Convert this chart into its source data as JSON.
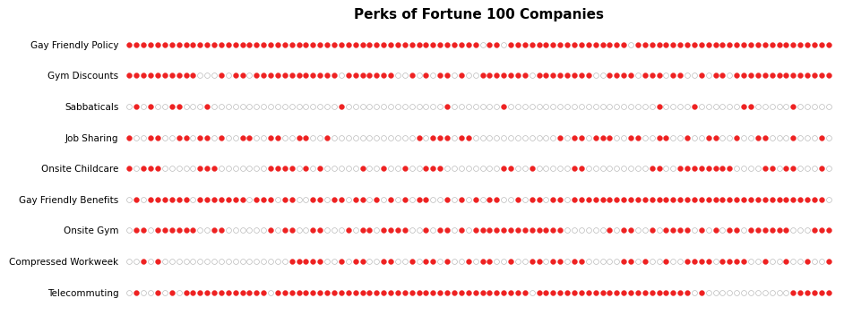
{
  "title": "Perks of Fortune 100 Companies",
  "title_fontsize": 11,
  "categories": [
    "Gay Friendly Policy",
    "Gym Discounts",
    "Sabbaticals",
    "Job Sharing",
    "Onsite Childcare",
    "Gay Friendly Benefits",
    "Onsite Gym",
    "Compressed Workweek",
    "Telecommuting"
  ],
  "n_companies": 100,
  "filled_color": "#EE2222",
  "empty_color": "#FFFFFF",
  "edge_color": "#BBBBBB",
  "background_color": "#FFFFFF",
  "binary_data": {
    "Gay Friendly Policy": [
      1,
      1,
      1,
      1,
      1,
      1,
      1,
      1,
      1,
      1,
      1,
      1,
      1,
      1,
      1,
      1,
      1,
      1,
      1,
      1,
      1,
      1,
      1,
      1,
      1,
      1,
      1,
      1,
      1,
      1,
      1,
      1,
      1,
      1,
      1,
      1,
      1,
      1,
      1,
      1,
      1,
      1,
      1,
      1,
      1,
      1,
      1,
      1,
      1,
      1,
      0,
      1,
      1,
      0,
      1,
      1,
      1,
      1,
      1,
      1,
      1,
      1,
      1,
      1,
      1,
      1,
      1,
      1,
      1,
      1,
      1,
      0,
      1,
      1,
      1,
      1,
      1,
      1,
      1,
      1,
      1,
      1,
      1,
      1,
      1,
      1,
      1,
      1,
      1,
      1,
      1,
      1,
      1,
      1,
      1,
      1,
      1,
      1,
      1,
      1
    ],
    "Gym Discounts": [
      1,
      1,
      1,
      1,
      1,
      1,
      1,
      1,
      1,
      1,
      0,
      0,
      0,
      1,
      0,
      1,
      1,
      0,
      1,
      1,
      1,
      1,
      1,
      1,
      1,
      1,
      1,
      1,
      1,
      1,
      0,
      1,
      1,
      1,
      1,
      1,
      1,
      1,
      0,
      0,
      1,
      0,
      1,
      0,
      1,
      1,
      0,
      1,
      0,
      0,
      1,
      1,
      1,
      1,
      1,
      1,
      1,
      0,
      1,
      1,
      1,
      1,
      1,
      1,
      1,
      1,
      0,
      0,
      1,
      1,
      1,
      1,
      0,
      1,
      1,
      1,
      0,
      1,
      1,
      0,
      0,
      1,
      0,
      1,
      1,
      0,
      1,
      1,
      1,
      1,
      1,
      1,
      1,
      1,
      1,
      1,
      1,
      1,
      1,
      1
    ],
    "Sabbaticals": [
      0,
      1,
      0,
      1,
      0,
      0,
      1,
      1,
      0,
      0,
      0,
      1,
      0,
      0,
      0,
      0,
      0,
      0,
      0,
      0,
      0,
      0,
      0,
      0,
      0,
      0,
      0,
      0,
      0,
      0,
      1,
      0,
      0,
      0,
      0,
      0,
      0,
      0,
      0,
      0,
      0,
      0,
      0,
      0,
      0,
      1,
      0,
      0,
      0,
      0,
      0,
      0,
      0,
      1,
      0,
      0,
      0,
      0,
      0,
      0,
      0,
      0,
      0,
      0,
      0,
      0,
      0,
      0,
      0,
      0,
      0,
      0,
      0,
      0,
      0,
      1,
      0,
      0,
      0,
      0,
      1,
      0,
      0,
      0,
      0,
      0,
      0,
      1,
      1,
      0,
      0,
      0,
      0,
      0,
      1,
      0,
      0,
      0,
      0,
      0
    ],
    "Job Sharing": [
      1,
      0,
      0,
      1,
      1,
      0,
      0,
      1,
      1,
      0,
      1,
      1,
      0,
      1,
      0,
      0,
      1,
      1,
      0,
      0,
      1,
      1,
      0,
      0,
      1,
      1,
      0,
      0,
      1,
      0,
      0,
      0,
      0,
      0,
      0,
      0,
      0,
      0,
      0,
      0,
      0,
      1,
      0,
      1,
      1,
      1,
      0,
      1,
      1,
      0,
      0,
      0,
      0,
      0,
      0,
      0,
      0,
      0,
      0,
      0,
      0,
      1,
      0,
      1,
      1,
      0,
      1,
      1,
      1,
      0,
      0,
      1,
      1,
      0,
      0,
      1,
      1,
      0,
      0,
      1,
      0,
      0,
      1,
      1,
      0,
      0,
      1,
      0,
      0,
      1,
      1,
      0,
      0,
      0,
      1,
      0,
      0,
      0,
      1,
      0
    ],
    "Onsite Childcare": [
      1,
      0,
      1,
      1,
      1,
      0,
      0,
      0,
      0,
      0,
      1,
      1,
      1,
      0,
      0,
      0,
      0,
      0,
      0,
      0,
      1,
      1,
      1,
      1,
      0,
      1,
      0,
      1,
      0,
      0,
      0,
      0,
      0,
      1,
      0,
      0,
      1,
      0,
      0,
      1,
      0,
      0,
      1,
      1,
      1,
      0,
      0,
      0,
      0,
      0,
      0,
      0,
      0,
      1,
      1,
      0,
      0,
      1,
      0,
      0,
      0,
      0,
      0,
      1,
      1,
      0,
      0,
      0,
      0,
      0,
      0,
      0,
      0,
      0,
      1,
      1,
      0,
      0,
      1,
      1,
      1,
      1,
      1,
      1,
      1,
      1,
      0,
      0,
      0,
      0,
      1,
      1,
      0,
      1,
      1,
      0,
      0,
      0,
      1,
      0
    ],
    "Gay Friendly Benefits": [
      0,
      1,
      0,
      1,
      1,
      1,
      1,
      1,
      1,
      0,
      1,
      1,
      1,
      1,
      1,
      1,
      1,
      0,
      1,
      1,
      1,
      0,
      1,
      1,
      0,
      0,
      1,
      1,
      0,
      1,
      1,
      0,
      1,
      1,
      0,
      1,
      0,
      1,
      0,
      1,
      0,
      1,
      1,
      0,
      0,
      1,
      0,
      1,
      0,
      1,
      0,
      1,
      1,
      0,
      0,
      1,
      0,
      1,
      1,
      0,
      1,
      1,
      0,
      1,
      1,
      1,
      1,
      1,
      1,
      1,
      1,
      1,
      1,
      1,
      1,
      1,
      1,
      1,
      1,
      1,
      1,
      1,
      1,
      1,
      1,
      1,
      1,
      1,
      1,
      1,
      1,
      1,
      1,
      1,
      1,
      1,
      1,
      1,
      1,
      0
    ],
    "Onsite Gym": [
      0,
      1,
      1,
      0,
      1,
      1,
      1,
      1,
      1,
      1,
      0,
      0,
      1,
      1,
      0,
      0,
      0,
      0,
      0,
      0,
      1,
      0,
      1,
      1,
      0,
      0,
      1,
      1,
      0,
      0,
      0,
      1,
      0,
      1,
      1,
      0,
      1,
      1,
      1,
      1,
      0,
      0,
      1,
      0,
      1,
      1,
      0,
      1,
      0,
      1,
      1,
      1,
      1,
      1,
      1,
      1,
      1,
      1,
      1,
      1,
      1,
      1,
      0,
      0,
      0,
      0,
      0,
      0,
      1,
      0,
      1,
      1,
      0,
      0,
      1,
      0,
      1,
      1,
      1,
      1,
      0,
      1,
      0,
      1,
      0,
      1,
      1,
      0,
      1,
      1,
      1,
      1,
      1,
      1,
      0,
      0,
      0,
      1,
      1,
      1
    ],
    "Compressed Workweek": [
      0,
      0,
      1,
      0,
      1,
      0,
      0,
      0,
      0,
      0,
      0,
      0,
      0,
      0,
      0,
      0,
      0,
      0,
      0,
      0,
      0,
      0,
      0,
      1,
      1,
      1,
      1,
      1,
      0,
      0,
      1,
      0,
      1,
      1,
      0,
      0,
      1,
      1,
      0,
      0,
      1,
      0,
      1,
      1,
      0,
      1,
      0,
      0,
      1,
      0,
      1,
      1,
      0,
      0,
      1,
      0,
      0,
      1,
      1,
      0,
      1,
      1,
      0,
      1,
      1,
      0,
      0,
      0,
      0,
      0,
      1,
      1,
      0,
      1,
      0,
      0,
      1,
      0,
      0,
      1,
      1,
      1,
      1,
      0,
      1,
      1,
      1,
      1,
      0,
      0,
      1,
      0,
      0,
      1,
      0,
      0,
      1,
      0,
      0,
      1
    ],
    "Telecommuting": [
      0,
      1,
      0,
      0,
      1,
      0,
      1,
      0,
      1,
      1,
      1,
      1,
      1,
      1,
      1,
      1,
      1,
      1,
      1,
      1,
      0,
      1,
      1,
      1,
      1,
      1,
      1,
      1,
      1,
      1,
      1,
      1,
      1,
      1,
      1,
      1,
      1,
      1,
      1,
      1,
      1,
      1,
      1,
      1,
      1,
      1,
      1,
      1,
      1,
      1,
      1,
      1,
      1,
      1,
      1,
      1,
      1,
      0,
      1,
      1,
      1,
      1,
      1,
      1,
      1,
      1,
      1,
      1,
      1,
      1,
      1,
      1,
      1,
      1,
      1,
      1,
      1,
      1,
      1,
      1,
      0,
      1,
      0,
      0,
      0,
      0,
      0,
      0,
      0,
      0,
      0,
      0,
      0,
      0,
      1,
      1,
      1,
      1,
      1,
      1
    ]
  },
  "figsize": [
    9.42,
    3.62
  ],
  "dpi": 100,
  "dot_size": 4.2,
  "label_fontsize": 7.5
}
